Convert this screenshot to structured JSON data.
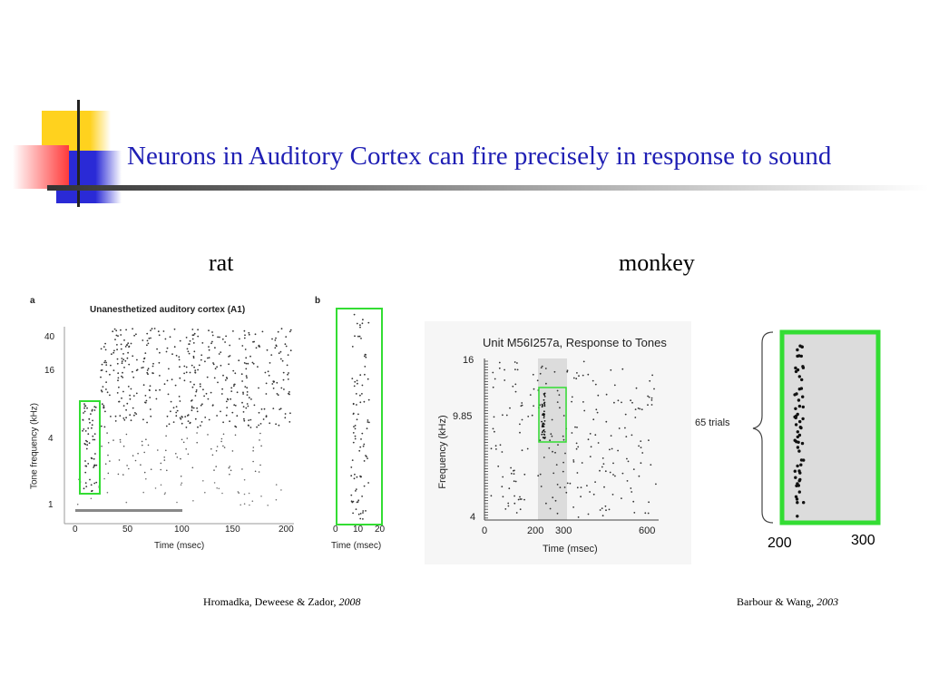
{
  "slide": {
    "title": "Neurons in Auditory Cortex can fire precisely in response to sound"
  },
  "panels": {
    "rat": {
      "heading": "rat",
      "figure_a": {
        "label": "a",
        "title": "Unanesthetized auditory cortex (A1)",
        "ylabel": "Tone frequency (kHz)",
        "xlabel": "Time (msec)",
        "yticks": [
          "40",
          "16",
          "4",
          "1"
        ],
        "xticks": [
          "0",
          "50",
          "100",
          "150",
          "200"
        ]
      },
      "figure_b": {
        "label": "b",
        "xlabel": "Time (msec)",
        "xticks": [
          "0",
          "10",
          "20"
        ]
      },
      "citation": {
        "authors": "Hromadka, Deweese & Zador, ",
        "year": "2008"
      }
    },
    "monkey": {
      "heading": "monkey",
      "figure": {
        "title": "Unit M56I257a, Response to Tones",
        "ylabel": "Frequency (kHz)",
        "xlabel": "Time (msec)",
        "yticks": [
          "16",
          "9.85",
          "4"
        ],
        "xticks": [
          "0",
          "200",
          "300",
          "600"
        ]
      },
      "inset": {
        "trials_label": "65 trials",
        "xticks": [
          "200",
          "300"
        ]
      },
      "citation": {
        "authors": "Barbour & Wang, ",
        "year": "2003"
      }
    }
  },
  "colors": {
    "title": "#1f1fb4",
    "highlight_box": "#33dd33",
    "shaded_window": "#dcdcdc",
    "deco_yellow": "#ffd21e",
    "deco_red": "#ff5a5a",
    "deco_blue": "#2a2ad6"
  }
}
